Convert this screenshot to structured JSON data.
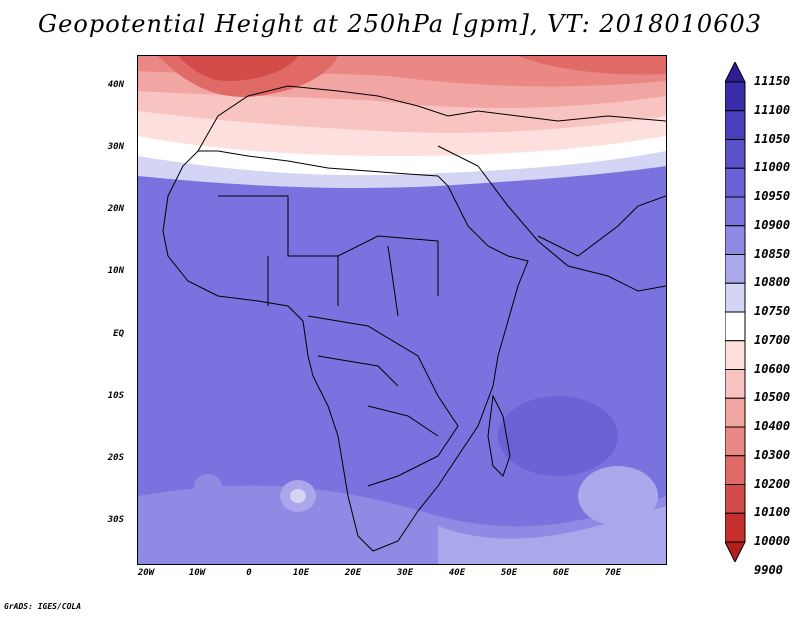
{
  "title": "Geopotential Height at 250hPa [gpm], VT: 2018010603",
  "footer": "GrADS: IGES/COLA",
  "lat_labels": [
    "40N",
    "30N",
    "20N",
    "10N",
    "EQ",
    "10S",
    "20S",
    "30S"
  ],
  "lon_labels": [
    "20W",
    "10W",
    "0",
    "10E",
    "20E",
    "30E",
    "40E",
    "50E",
    "60E",
    "70E"
  ],
  "colorbar": {
    "labels": [
      "11150",
      "11100",
      "11050",
      "11000",
      "10950",
      "10900",
      "10850",
      "10800",
      "10750",
      "10700",
      "10600",
      "10500",
      "10400",
      "10300",
      "10200",
      "10100",
      "10000",
      "9900"
    ],
    "colors": [
      "#2c1f95",
      "#3a2ea8",
      "#4a3fbd",
      "#5b52c9",
      "#6b62d6",
      "#7b74dc",
      "#8f8ae3",
      "#aaa8ea",
      "#d4d4f5",
      "#ffffff",
      "#fde0de",
      "#f8c4c1",
      "#f2a6a3",
      "#e98884",
      "#df6a66",
      "#d44c49",
      "#c52f2d",
      "#b01e1e"
    ]
  },
  "map": {
    "lon_range": [
      -23,
      79
    ],
    "lat_range": [
      -38,
      45
    ],
    "background_color": "#7a72de"
  }
}
